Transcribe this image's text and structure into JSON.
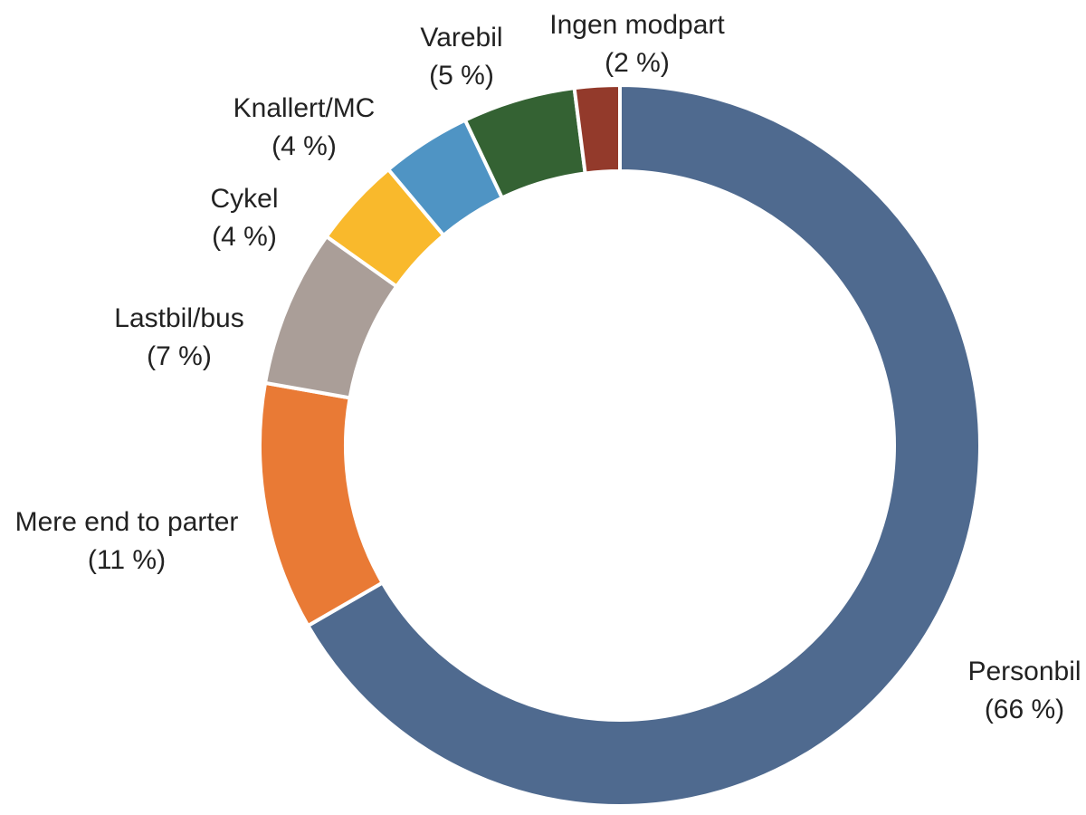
{
  "chart_data": {
    "type": "pie",
    "donut": true,
    "title": "",
    "legend": "none",
    "slices": [
      {
        "name": "Personbil",
        "label": "Personbil",
        "value_label": "(66 %)",
        "value": 66,
        "color": "#4f6a8f"
      },
      {
        "name": "Mere end to parter",
        "label": "Mere end to parter",
        "value_label": "(11 %)",
        "value": 11,
        "color": "#e97a35"
      },
      {
        "name": "Lastbil/bus",
        "label": "Lastbil/bus",
        "value_label": "(7 %)",
        "value": 7,
        "color": "#aa9e98"
      },
      {
        "name": "Cykel",
        "label": "Cykel",
        "value_label": "(4 %)",
        "value": 4,
        "color": "#f9b92c"
      },
      {
        "name": "Knallert/MC",
        "label": "Knallert/MC",
        "value_label": "(4 %)",
        "value": 4,
        "color": "#4f94c4"
      },
      {
        "name": "Varebil",
        "label": "Varebil",
        "value_label": "(5 %)",
        "value": 5,
        "color": "#346233"
      },
      {
        "name": "Ingen modpart",
        "label": "Ingen modpart",
        "value_label": "(2 %)",
        "value": 2,
        "color": "#933a2b"
      }
    ]
  }
}
